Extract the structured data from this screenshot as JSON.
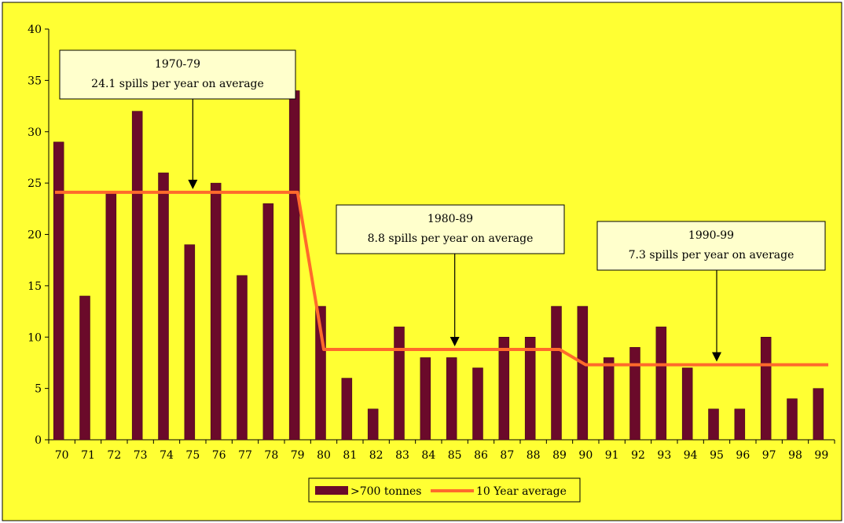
{
  "chart_data": {
    "type": "bar",
    "categories": [
      "70",
      "71",
      "72",
      "73",
      "74",
      "75",
      "76",
      "77",
      "78",
      "79",
      "80",
      "81",
      "82",
      "83",
      "84",
      "85",
      "86",
      "87",
      "88",
      "89",
      "90",
      "91",
      "92",
      "93",
      "94",
      "95",
      "96",
      "97",
      "98",
      "99"
    ],
    "series": [
      {
        "name": ">700 tonnes",
        "type": "bar",
        "color": "#6b0a2a",
        "values": [
          29,
          14,
          24,
          32,
          26,
          19,
          25,
          16,
          23,
          34,
          13,
          6,
          3,
          11,
          8,
          8,
          7,
          10,
          10,
          13,
          13,
          8,
          9,
          11,
          7,
          3,
          3,
          10,
          4,
          5
        ]
      },
      {
        "name": "10 Year average",
        "type": "line",
        "color": "#ff6a2b",
        "values": [
          24.1,
          24.1,
          24.1,
          24.1,
          24.1,
          24.1,
          24.1,
          24.1,
          24.1,
          24.1,
          8.8,
          8.8,
          8.8,
          8.8,
          8.8,
          8.8,
          8.8,
          8.8,
          8.8,
          8.8,
          7.3,
          7.3,
          7.3,
          7.3,
          7.3,
          7.3,
          7.3,
          7.3,
          7.3,
          7.3
        ]
      }
    ],
    "ylim": [
      0,
      40
    ],
    "yticks": [
      0,
      5,
      10,
      15,
      20,
      25,
      30,
      35,
      40
    ],
    "legend_position": "bottom",
    "grid": false,
    "background_color": "#ffff33",
    "annotations": [
      {
        "title": "1970-79",
        "text": "24.1 spills per year on average",
        "points_to": "75",
        "value": 24.1
      },
      {
        "title": "1980-89",
        "text": "8.8 spills per year on average",
        "points_to": "85",
        "value": 8.8
      },
      {
        "title": "1990-99",
        "text": "7.3 spills per year on average",
        "points_to": "95",
        "value": 7.3
      }
    ]
  }
}
